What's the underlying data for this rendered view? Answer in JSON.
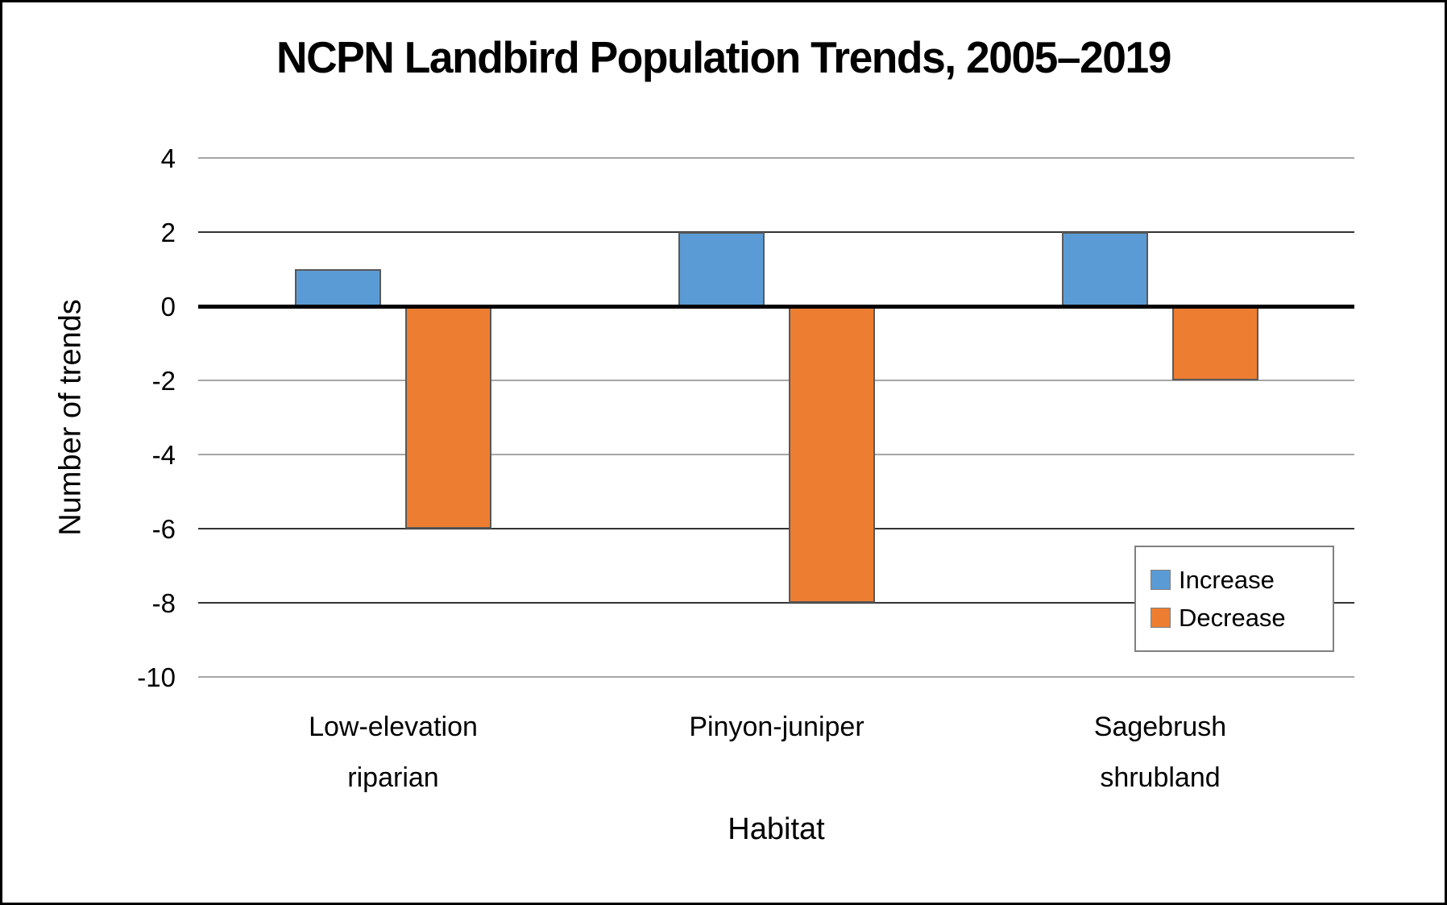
{
  "chart_data": {
    "type": "bar",
    "title": "NCPN Landbird Population Trends, 2005–2019",
    "xlabel": "Habitat",
    "ylabel": "Number of trends",
    "categories": [
      "Low-elevation riparian",
      "Pinyon-juniper",
      "Sagebrush shrubland"
    ],
    "category_display_labels": [
      "Low-elevation\nriparian",
      "Pinyon-juniper",
      "Sagebrush\nshrubland"
    ],
    "series": [
      {
        "name": "Increase",
        "color": "#5B9BD5",
        "values": [
          1,
          2,
          2
        ]
      },
      {
        "name": "Decrease",
        "color": "#ED7D31",
        "values": [
          -6,
          -8,
          -2
        ]
      }
    ],
    "ylim": [
      -10,
      4
    ],
    "yticks": [
      4,
      2,
      0,
      -2,
      -4,
      -6,
      -8,
      -10
    ],
    "grid": true,
    "legend_position": "inside-right",
    "legend": [
      "Increase",
      "Decrease"
    ]
  },
  "colors": {
    "increase_fill": "#5B9BD5",
    "decrease_fill": "#ED7D31",
    "bar_border": "#595959",
    "gridline_light": "#A6A6A6",
    "gridline_dark": "#333333",
    "zero_line": "#000000",
    "legend_border": "#808080",
    "frame_border": "#000000",
    "text": "#000000"
  }
}
